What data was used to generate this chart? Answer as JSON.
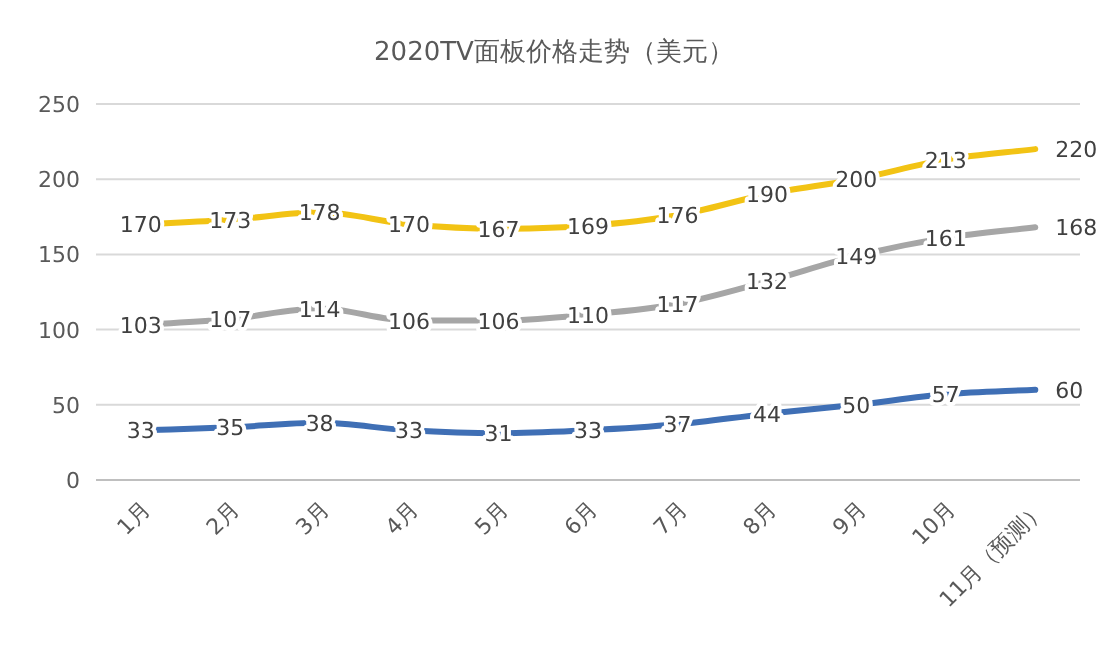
{
  "chart_data": {
    "type": "line",
    "title": "2020TV面板价格走势（美元）",
    "categories": [
      "1月",
      "2月",
      "3月",
      "4月",
      "5月",
      "6月",
      "7月",
      "8月",
      "9月",
      "10月",
      "11月（预测）"
    ],
    "series": [
      {
        "color": "#f2c314",
        "values": [
          170,
          173,
          178,
          170,
          167,
          169,
          176,
          190,
          200,
          213,
          220
        ]
      },
      {
        "color": "#a6a6a6",
        "values": [
          103,
          107,
          114,
          106,
          106,
          110,
          117,
          132,
          149,
          161,
          168
        ]
      },
      {
        "color": "#3f6fb5",
        "values": [
          33,
          35,
          38,
          33,
          31,
          33,
          37,
          44,
          50,
          57,
          60
        ]
      }
    ],
    "ylim": [
      0,
      250
    ],
    "yticks": [
      0,
      50,
      100,
      150,
      200,
      250
    ],
    "grid": "y",
    "data_labels": true
  }
}
